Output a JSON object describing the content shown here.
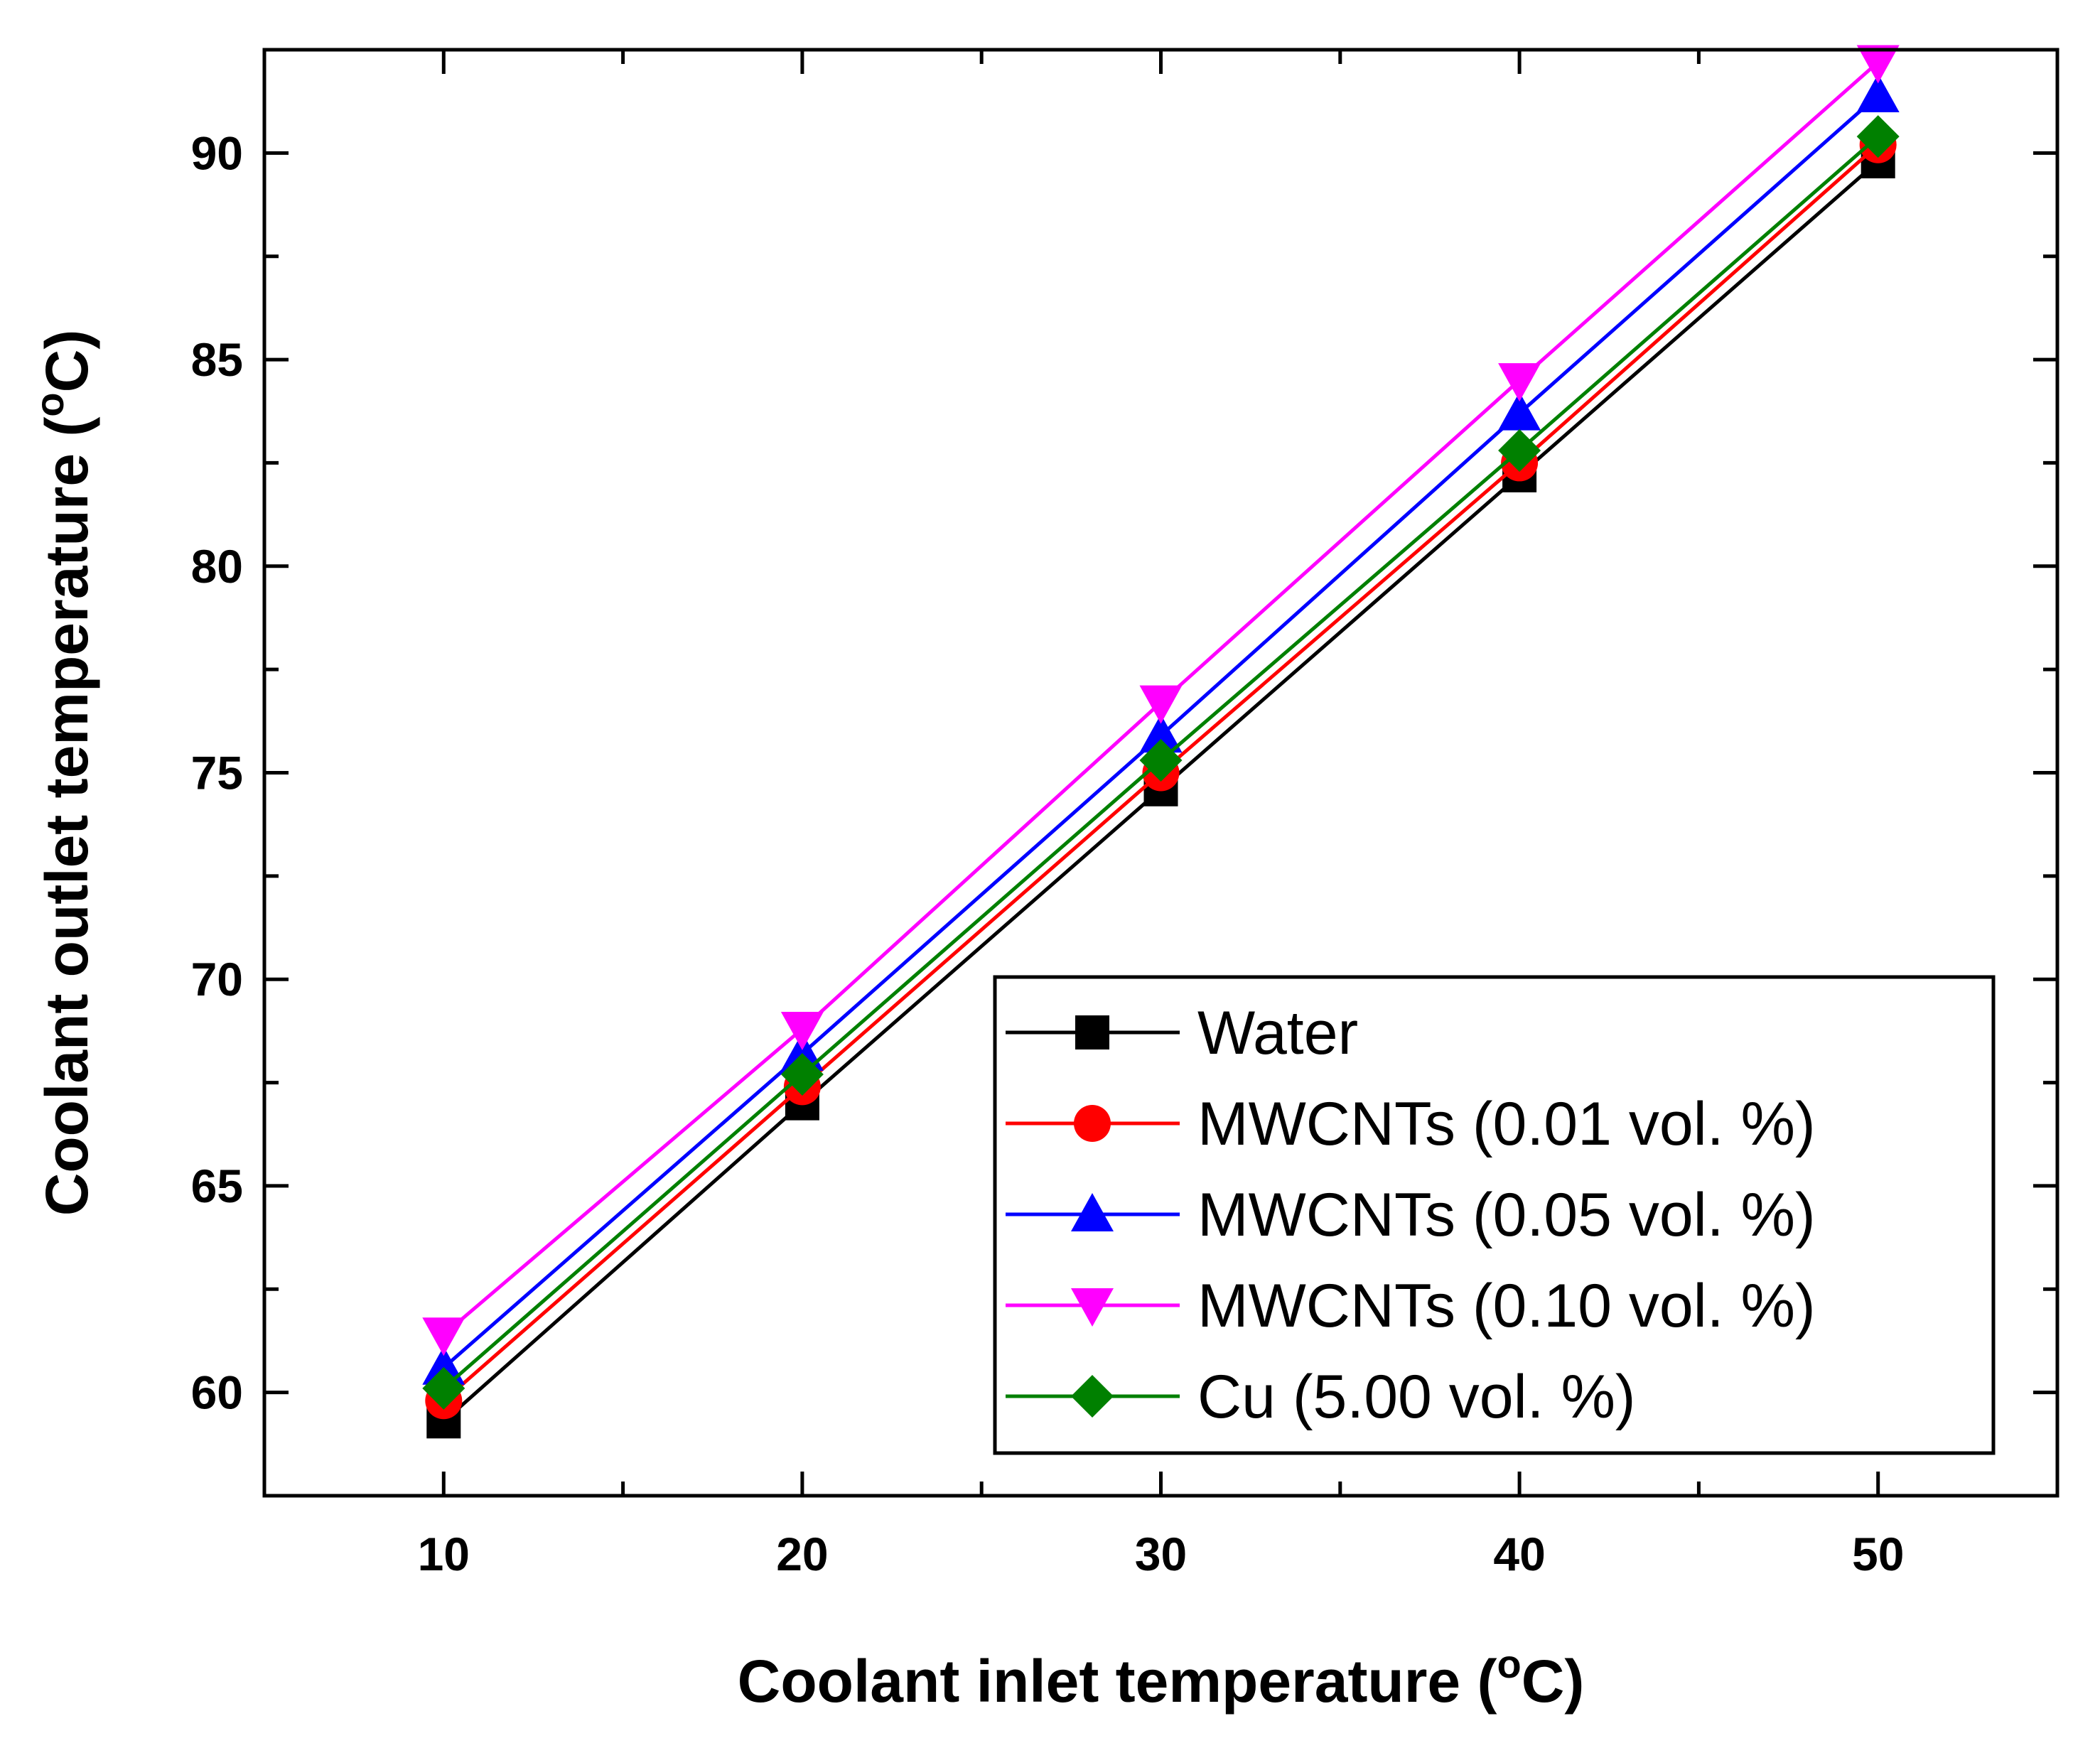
{
  "chart_data": {
    "type": "line",
    "xlabel": "Coolant inlet temperature (",
    "xlabel_sup": "o",
    "xlabel_end": "C)",
    "ylabel": "Coolant outlet temperature (",
    "ylabel_sup": "o",
    "ylabel_end": "C)",
    "xlim": [
      5,
      55
    ],
    "ylim": [
      57.5,
      92.5
    ],
    "xticks": [
      10,
      20,
      30,
      40,
      50
    ],
    "xtick_labels": [
      "10",
      "20",
      "30",
      "40",
      "50"
    ],
    "yticks": [
      60,
      65,
      70,
      75,
      80,
      85,
      90
    ],
    "ytick_labels": [
      "60",
      "65",
      "70",
      "75",
      "80",
      "85",
      "90"
    ],
    "x": [
      10,
      20,
      30,
      40,
      50
    ],
    "grid": false,
    "legend_position": "bottom-right",
    "series": [
      {
        "name": "Water",
        "color": "#000000",
        "marker": "square",
        "values": [
          59.3,
          67.0,
          74.6,
          82.2,
          89.8
        ]
      },
      {
        "name": "MWCNTs (0.01 vol. %)",
        "color": "#ff0000",
        "marker": "circle",
        "values": [
          59.8,
          67.4,
          75.0,
          82.5,
          90.2
        ]
      },
      {
        "name": "MWCNTs (0.05 vol. %)",
        "color": "#0000ff",
        "marker": "triangle-up",
        "values": [
          60.6,
          68.2,
          75.9,
          83.7,
          91.4
        ]
      },
      {
        "name": "MWCNTs (0.10 vol. %)",
        "color": "#ff00ff",
        "marker": "triangle-down",
        "values": [
          61.4,
          68.8,
          76.7,
          84.5,
          92.2
        ]
      },
      {
        "name": "Cu (5.00 vol. %)",
        "color": "#008000",
        "marker": "diamond",
        "values": [
          60.1,
          67.7,
          75.3,
          82.8,
          90.4
        ]
      }
    ]
  }
}
